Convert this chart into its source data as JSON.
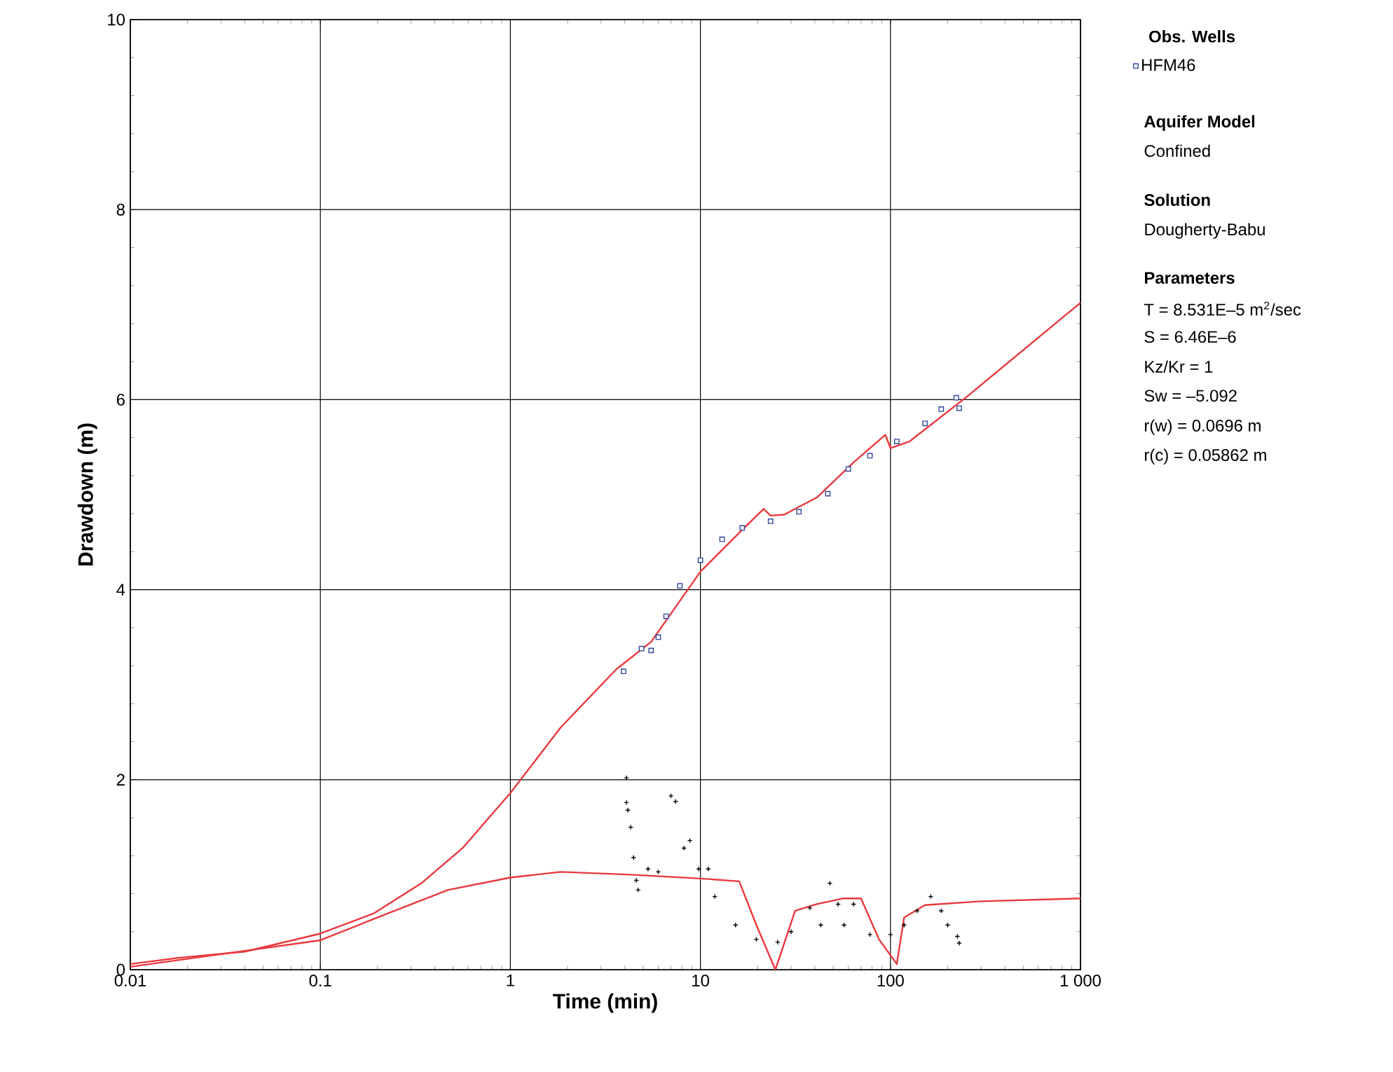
{
  "chart_data": {
    "type": "scatter",
    "xlabel": "Time (min)",
    "ylabel": "Drawdown (m)",
    "log": "x",
    "xlim": [
      0.01,
      1000
    ],
    "ylim": [
      0,
      10
    ],
    "xticks": [
      0.01,
      0.1,
      1,
      10,
      100,
      {
        "value": 1000,
        "label": "1 000"
      }
    ],
    "yticks": [
      0,
      2,
      4,
      6,
      8,
      10
    ],
    "grid": true,
    "legend": "right",
    "legend_title": "Obs. Wells",
    "series": [
      {
        "name": "HFM46",
        "marker": "square",
        "color": "#2e4a9e",
        "x": [
          3.94,
          4.9,
          5.5,
          6.0,
          6.6,
          7.8,
          10,
          13,
          16.6,
          23.4,
          33,
          46.8,
          60,
          78,
          108,
          152,
          185,
          222,
          230
        ],
        "values": [
          3.14,
          3.38,
          3.36,
          3.5,
          3.72,
          4.04,
          4.31,
          4.53,
          4.65,
          4.72,
          4.82,
          5.01,
          5.27,
          5.41,
          5.56,
          5.75,
          5.9,
          6.02,
          5.91
        ]
      },
      {
        "marker": "cross",
        "color": "#000000",
        "x": [
          4.08,
          4.08,
          4.15,
          4.3,
          4.45,
          4.6,
          4.7,
          5.3,
          6.0,
          7.0,
          7.4,
          8.2,
          8.8,
          9.8,
          11,
          11.9,
          15.3,
          19.7,
          25.5,
          30,
          37.7,
          43,
          48,
          53,
          57,
          64,
          78,
          100,
          118,
          138,
          163,
          185,
          200,
          225,
          230
        ],
        "values": [
          2.02,
          1.76,
          1.68,
          1.5,
          1.18,
          0.94,
          0.84,
          1.06,
          1.03,
          1.83,
          1.77,
          1.28,
          1.36,
          1.06,
          1.06,
          0.77,
          0.47,
          0.32,
          0.29,
          0.4,
          0.65,
          0.47,
          0.91,
          0.69,
          0.47,
          0.69,
          0.37,
          0.37,
          0.47,
          0.62,
          0.77,
          0.62,
          0.47,
          0.35,
          0.28
        ]
      },
      {
        "type": "line",
        "line_style": "solid",
        "color": "#e8383d",
        "x": [
          0.01,
          0.019,
          0.04,
          0.1,
          0.19,
          0.34,
          0.56,
          1,
          1.84,
          3.6,
          5.5,
          10,
          16.6,
          21.5,
          23.4,
          27.6,
          41,
          64,
          94,
          100,
          126,
          252,
          1000
        ],
        "values": [
          0.06,
          0.13,
          0.19,
          0.38,
          0.59,
          0.91,
          1.28,
          1.86,
          2.55,
          3.16,
          3.45,
          4.19,
          4.63,
          4.85,
          4.78,
          4.79,
          4.97,
          5.34,
          5.63,
          5.49,
          5.56,
          6.03,
          7.02
        ]
      },
      {
        "type": "line",
        "line_style": "solid",
        "color": "#e8383d",
        "x": [
          0.01,
          0.1,
          0.2,
          0.47,
          1,
          1.84,
          4.3,
          10,
          16,
          19.7,
          24.8,
          31.5,
          41,
          56,
          70,
          87,
          108,
          118,
          152,
          300,
          1000
        ],
        "values": [
          0.03,
          0.31,
          0.55,
          0.84,
          0.97,
          1.03,
          1.0,
          0.96,
          0.93,
          0.47,
          0.0,
          0.62,
          0.69,
          0.75,
          0.75,
          0.32,
          0.06,
          0.55,
          0.68,
          0.72,
          0.75
        ]
      }
    ],
    "annotations": [
      "Aquifer Model",
      "Confined",
      "Solution",
      "Dougherty-Babu",
      "Parameters",
      "T = 8.531E–5 m$^{2}$/sec",
      "S = 6.46E–6",
      "Kz/Kr = 1",
      "Sw = –5.092",
      "r(w) = 0.0696 m",
      "r(c) = 0.05862 m"
    ]
  }
}
